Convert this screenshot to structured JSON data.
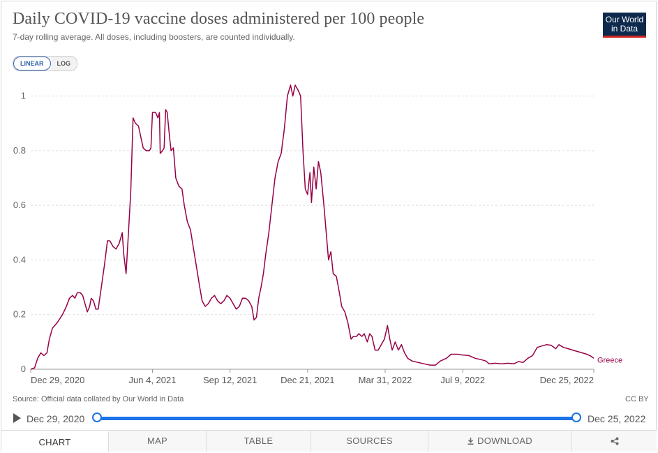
{
  "header": {
    "title": "Daily COVID-19 vaccine doses administered per 100 people",
    "subtitle": "7-day rolling average. All doses, including boosters, are counted individually.",
    "logo_line1": "Our World",
    "logo_line2": "in Data"
  },
  "scale_toggle": {
    "linear": "LINEAR",
    "log": "LOG",
    "selected": "LINEAR"
  },
  "footer": {
    "source": "Source: Official data collated by Our World in Data",
    "license": "CC BY"
  },
  "timeline": {
    "start_label": "Dec 29, 2020",
    "end_label": "Dec 25, 2022"
  },
  "tabs": [
    {
      "label": "CHART",
      "active": true
    },
    {
      "label": "MAP",
      "active": false
    },
    {
      "label": "TABLE",
      "active": false
    },
    {
      "label": "SOURCES",
      "active": false
    },
    {
      "label": "DOWNLOAD",
      "active": false
    },
    {
      "label": "",
      "active": false
    }
  ],
  "colors": {
    "series": "#970046",
    "grid": "#dddddd",
    "accent": "#1a73e8",
    "logo_bg": "#0d2a4d",
    "logo_bar": "#ce261e"
  },
  "icons": {
    "download": "download-icon",
    "share": "share-icon",
    "play": "play-icon"
  },
  "chart_data": {
    "type": "line",
    "title": "Daily COVID-19 vaccine doses administered per 100 people",
    "xlabel": "",
    "ylabel": "",
    "x_range": [
      "2020-12-29",
      "2022-12-25"
    ],
    "ylim": [
      0,
      1.05
    ],
    "y_ticks": [
      0,
      0.2,
      0.4,
      0.6,
      0.8,
      1
    ],
    "y_tick_labels": [
      "0",
      "0.2",
      "0.4",
      "0.6",
      "0.8",
      "1"
    ],
    "x_ticks": [
      "2020-12-29",
      "2021-06-04",
      "2021-09-12",
      "2021-12-21",
      "2022-03-31",
      "2022-07-09",
      "2022-12-25"
    ],
    "x_tick_labels": [
      "Dec 29, 2020",
      "Jun 4, 2021",
      "Sep 12, 2021",
      "Dec 21, 2021",
      "Mar 31, 2022",
      "Jul 9, 2022",
      "Dec 25, 2022"
    ],
    "grid": "horizontal dashed",
    "legend": "end-of-line label",
    "series": [
      {
        "name": "Greece",
        "points": [
          [
            "2020-12-29",
            0
          ],
          [
            "2021-01-03",
            0.005
          ],
          [
            "2021-01-07",
            0.04
          ],
          [
            "2021-01-11",
            0.06
          ],
          [
            "2021-01-15",
            0.05
          ],
          [
            "2021-01-19",
            0.06
          ],
          [
            "2021-01-22",
            0.11
          ],
          [
            "2021-01-26",
            0.15
          ],
          [
            "2021-02-01",
            0.17
          ],
          [
            "2021-02-08",
            0.2
          ],
          [
            "2021-02-13",
            0.23
          ],
          [
            "2021-02-17",
            0.26
          ],
          [
            "2021-02-21",
            0.27
          ],
          [
            "2021-02-24",
            0.26
          ],
          [
            "2021-02-27",
            0.28
          ],
          [
            "2021-03-03",
            0.28
          ],
          [
            "2021-03-06",
            0.27
          ],
          [
            "2021-03-09",
            0.24
          ],
          [
            "2021-03-12",
            0.21
          ],
          [
            "2021-03-15",
            0.23
          ],
          [
            "2021-03-17",
            0.26
          ],
          [
            "2021-03-20",
            0.25
          ],
          [
            "2021-03-23",
            0.22
          ],
          [
            "2021-03-26",
            0.22
          ],
          [
            "2021-03-30",
            0.3
          ],
          [
            "2021-04-03",
            0.38
          ],
          [
            "2021-04-07",
            0.47
          ],
          [
            "2021-04-10",
            0.47
          ],
          [
            "2021-04-14",
            0.45
          ],
          [
            "2021-04-18",
            0.44
          ],
          [
            "2021-04-22",
            0.46
          ],
          [
            "2021-04-26",
            0.5
          ],
          [
            "2021-04-28",
            0.42
          ],
          [
            "2021-05-01",
            0.35
          ],
          [
            "2021-05-04",
            0.5
          ],
          [
            "2021-05-07",
            0.65
          ],
          [
            "2021-05-10",
            0.92
          ],
          [
            "2021-05-13",
            0.9
          ],
          [
            "2021-05-17",
            0.89
          ],
          [
            "2021-05-20",
            0.85
          ],
          [
            "2021-05-23",
            0.81
          ],
          [
            "2021-05-27",
            0.8
          ],
          [
            "2021-05-31",
            0.8
          ],
          [
            "2021-06-02",
            0.81
          ],
          [
            "2021-06-04",
            0.94
          ],
          [
            "2021-06-08",
            0.94
          ],
          [
            "2021-06-11",
            0.92
          ],
          [
            "2021-06-13",
            0.94
          ],
          [
            "2021-06-14",
            0.79
          ],
          [
            "2021-06-17",
            0.8
          ],
          [
            "2021-06-19",
            0.81
          ],
          [
            "2021-06-21",
            0.95
          ],
          [
            "2021-06-23",
            0.94
          ],
          [
            "2021-06-26",
            0.85
          ],
          [
            "2021-06-28",
            0.8
          ],
          [
            "2021-07-01",
            0.81
          ],
          [
            "2021-07-04",
            0.7
          ],
          [
            "2021-07-08",
            0.67
          ],
          [
            "2021-07-12",
            0.66
          ],
          [
            "2021-07-15",
            0.6
          ],
          [
            "2021-07-19",
            0.54
          ],
          [
            "2021-07-23",
            0.51
          ],
          [
            "2021-07-27",
            0.44
          ],
          [
            "2021-07-31",
            0.37
          ],
          [
            "2021-08-04",
            0.3
          ],
          [
            "2021-08-07",
            0.25
          ],
          [
            "2021-08-11",
            0.23
          ],
          [
            "2021-08-15",
            0.24
          ],
          [
            "2021-08-19",
            0.26
          ],
          [
            "2021-08-23",
            0.27
          ],
          [
            "2021-08-27",
            0.25
          ],
          [
            "2021-08-31",
            0.24
          ],
          [
            "2021-09-04",
            0.25
          ],
          [
            "2021-09-08",
            0.27
          ],
          [
            "2021-09-12",
            0.26
          ],
          [
            "2021-09-16",
            0.24
          ],
          [
            "2021-09-20",
            0.22
          ],
          [
            "2021-09-24",
            0.23
          ],
          [
            "2021-09-28",
            0.26
          ],
          [
            "2021-10-02",
            0.26
          ],
          [
            "2021-10-06",
            0.25
          ],
          [
            "2021-10-10",
            0.23
          ],
          [
            "2021-10-13",
            0.18
          ],
          [
            "2021-10-16",
            0.19
          ],
          [
            "2021-10-19",
            0.26
          ],
          [
            "2021-10-22",
            0.3
          ],
          [
            "2021-10-25",
            0.35
          ],
          [
            "2021-10-28",
            0.42
          ],
          [
            "2021-11-01",
            0.5
          ],
          [
            "2021-11-05",
            0.6
          ],
          [
            "2021-11-09",
            0.7
          ],
          [
            "2021-11-13",
            0.76
          ],
          [
            "2021-11-17",
            0.79
          ],
          [
            "2021-11-21",
            0.88
          ],
          [
            "2021-11-25",
            1.0
          ],
          [
            "2021-11-29",
            1.04
          ],
          [
            "2021-12-02",
            1.0
          ],
          [
            "2021-12-05",
            1.04
          ],
          [
            "2021-12-09",
            1.02
          ],
          [
            "2021-12-12",
            1.0
          ],
          [
            "2021-12-15",
            0.8
          ],
          [
            "2021-12-18",
            0.66
          ],
          [
            "2021-12-21",
            0.64
          ],
          [
            "2021-12-24",
            0.72
          ],
          [
            "2021-12-26",
            0.61
          ],
          [
            "2021-12-29",
            0.74
          ],
          [
            "2022-01-01",
            0.66
          ],
          [
            "2022-01-04",
            0.76
          ],
          [
            "2022-01-07",
            0.72
          ],
          [
            "2022-01-11",
            0.6
          ],
          [
            "2022-01-14",
            0.5
          ],
          [
            "2022-01-17",
            0.4
          ],
          [
            "2022-01-20",
            0.43
          ],
          [
            "2022-01-23",
            0.35
          ],
          [
            "2022-01-27",
            0.34
          ],
          [
            "2022-01-31",
            0.28
          ],
          [
            "2022-02-03",
            0.23
          ],
          [
            "2022-02-07",
            0.21
          ],
          [
            "2022-02-11",
            0.17
          ],
          [
            "2022-02-15",
            0.11
          ],
          [
            "2022-02-18",
            0.12
          ],
          [
            "2022-02-22",
            0.12
          ],
          [
            "2022-02-25",
            0.13
          ],
          [
            "2022-03-01",
            0.12
          ],
          [
            "2022-03-04",
            0.13
          ],
          [
            "2022-03-08",
            0.1
          ],
          [
            "2022-03-11",
            0.13
          ],
          [
            "2022-03-14",
            0.12
          ],
          [
            "2022-03-18",
            0.07
          ],
          [
            "2022-03-22",
            0.07
          ],
          [
            "2022-03-26",
            0.09
          ],
          [
            "2022-03-30",
            0.11
          ],
          [
            "2022-04-03",
            0.16
          ],
          [
            "2022-04-06",
            0.11
          ],
          [
            "2022-04-09",
            0.07
          ],
          [
            "2022-04-13",
            0.1
          ],
          [
            "2022-04-17",
            0.07
          ],
          [
            "2022-04-21",
            0.09
          ],
          [
            "2022-04-25",
            0.06
          ],
          [
            "2022-04-29",
            0.04
          ],
          [
            "2022-05-05",
            0.03
          ],
          [
            "2022-05-12",
            0.025
          ],
          [
            "2022-05-20",
            0.02
          ],
          [
            "2022-05-28",
            0.015
          ],
          [
            "2022-06-04",
            0.015
          ],
          [
            "2022-06-10",
            0.03
          ],
          [
            "2022-06-18",
            0.04
          ],
          [
            "2022-06-24",
            0.055
          ],
          [
            "2022-07-02",
            0.055
          ],
          [
            "2022-07-09",
            0.052
          ],
          [
            "2022-07-17",
            0.05
          ],
          [
            "2022-07-25",
            0.04
          ],
          [
            "2022-08-02",
            0.035
          ],
          [
            "2022-08-08",
            0.03
          ],
          [
            "2022-08-12",
            0.02
          ],
          [
            "2022-08-20",
            0.022
          ],
          [
            "2022-08-28",
            0.02
          ],
          [
            "2022-09-05",
            0.022
          ],
          [
            "2022-09-13",
            0.02
          ],
          [
            "2022-09-19",
            0.028
          ],
          [
            "2022-09-25",
            0.025
          ],
          [
            "2022-10-01",
            0.04
          ],
          [
            "2022-10-07",
            0.05
          ],
          [
            "2022-10-13",
            0.08
          ],
          [
            "2022-10-19",
            0.085
          ],
          [
            "2022-10-25",
            0.09
          ],
          [
            "2022-10-31",
            0.088
          ],
          [
            "2022-11-06",
            0.075
          ],
          [
            "2022-11-10",
            0.09
          ],
          [
            "2022-11-16",
            0.08
          ],
          [
            "2022-11-22",
            0.075
          ],
          [
            "2022-11-28",
            0.07
          ],
          [
            "2022-12-04",
            0.065
          ],
          [
            "2022-12-10",
            0.06
          ],
          [
            "2022-12-16",
            0.055
          ],
          [
            "2022-12-20",
            0.05
          ],
          [
            "2022-12-25",
            0.04
          ]
        ]
      }
    ]
  }
}
